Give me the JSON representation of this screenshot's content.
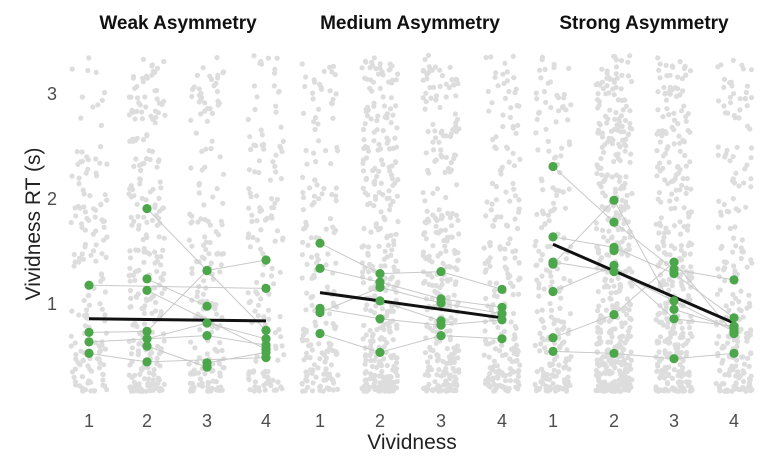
{
  "chart_data": {
    "type": "scatter",
    "xlabel": "Vividness",
    "ylabel": "Vividness RT (s)",
    "x_ticks": [
      "1",
      "2",
      "3",
      "4"
    ],
    "y_ticks": [
      "1",
      "2",
      "3"
    ],
    "ylim": [
      0.15,
      3.35
    ],
    "grid": false,
    "colors": {
      "raw": "#dddddd",
      "subject": "#4ca64a",
      "subject_line": "#c9c9c9",
      "fit": "#111111"
    },
    "panels": [
      {
        "title": "Weak Asymmetry",
        "fit": {
          "x": [
            1,
            4
          ],
          "y": [
            0.84,
            0.82
          ]
        },
        "subjects": [
          {
            "x": [
              1,
              4
            ],
            "y": [
              1.16,
              1.13
            ]
          },
          {
            "x": [
              1,
              2,
              3,
              4
            ],
            "y": [
              0.71,
              0.72,
              1.3,
              1.4
            ]
          },
          {
            "x": [
              1,
              3,
              4
            ],
            "y": [
              0.62,
              0.68,
              0.59
            ]
          },
          {
            "x": [
              1,
              2,
              4
            ],
            "y": [
              0.51,
              0.43,
              0.47
            ]
          },
          {
            "x": [
              2,
              3,
              4
            ],
            "y": [
              1.89,
              1.3,
              0.73
            ]
          },
          {
            "x": [
              2,
              4
            ],
            "y": [
              1.11,
              0.55
            ]
          },
          {
            "x": [
              2,
              3
            ],
            "y": [
              1.22,
              0.96
            ]
          },
          {
            "x": [
              2,
              3,
              4
            ],
            "y": [
              0.65,
              0.8,
              0.65
            ]
          },
          {
            "x": [
              2,
              3
            ],
            "y": [
              0.58,
              0.38
            ]
          },
          {
            "x": [
              3,
              4
            ],
            "y": [
              0.42,
              0.52
            ]
          }
        ]
      },
      {
        "title": "Medium Asymmetry",
        "fit": {
          "x": [
            1,
            4
          ],
          "y": [
            1.09,
            0.85
          ]
        },
        "subjects": [
          {
            "x": [
              1,
              2,
              3,
              4
            ],
            "y": [
              1.56,
              1.27,
              1.29,
              1.12
            ]
          },
          {
            "x": [
              1,
              2,
              3,
              4
            ],
            "y": [
              1.32,
              1.19,
              1.03,
              0.95
            ]
          },
          {
            "x": [
              1,
              2,
              3,
              4
            ],
            "y": [
              0.94,
              0.84,
              0.78,
              0.83
            ]
          },
          {
            "x": [
              1,
              2,
              3,
              4
            ],
            "y": [
              0.9,
              1.14,
              0.99,
              0.89
            ]
          },
          {
            "x": [
              1,
              2,
              3,
              4
            ],
            "y": [
              0.7,
              0.52,
              0.68,
              0.65
            ]
          },
          {
            "x": [
              2,
              3
            ],
            "y": [
              1.01,
              0.82
            ]
          }
        ]
      },
      {
        "title": "Strong Asymmetry",
        "fit": {
          "x": [
            1,
            4
          ],
          "y": [
            1.55,
            0.8
          ]
        },
        "subjects": [
          {
            "x": [
              1,
              2,
              3,
              4
            ],
            "y": [
              2.29,
              1.76,
              1.31,
              1.21
            ]
          },
          {
            "x": [
              1,
              2,
              3,
              4
            ],
            "y": [
              1.62,
              1.52,
              1.27,
              0.85
            ]
          },
          {
            "x": [
              1,
              2,
              3,
              4
            ],
            "y": [
              1.38,
              1.29,
              1.01,
              0.72
            ]
          },
          {
            "x": [
              1,
              2,
              3,
              4
            ],
            "y": [
              1.36,
              1.97,
              0.93,
              0.75
            ]
          },
          {
            "x": [
              1,
              2,
              3,
              4
            ],
            "y": [
              1.1,
              1.35,
              0.84,
              0.77
            ]
          },
          {
            "x": [
              1,
              2,
              3,
              4
            ],
            "y": [
              0.66,
              0.88,
              1.38,
              0.7
            ]
          },
          {
            "x": [
              1,
              2,
              3,
              4
            ],
            "y": [
              0.53,
              0.51,
              0.46,
              0.51
            ]
          },
          {
            "x": [
              2
            ],
            "y": [
              1.49
            ]
          }
        ]
      }
    ]
  }
}
